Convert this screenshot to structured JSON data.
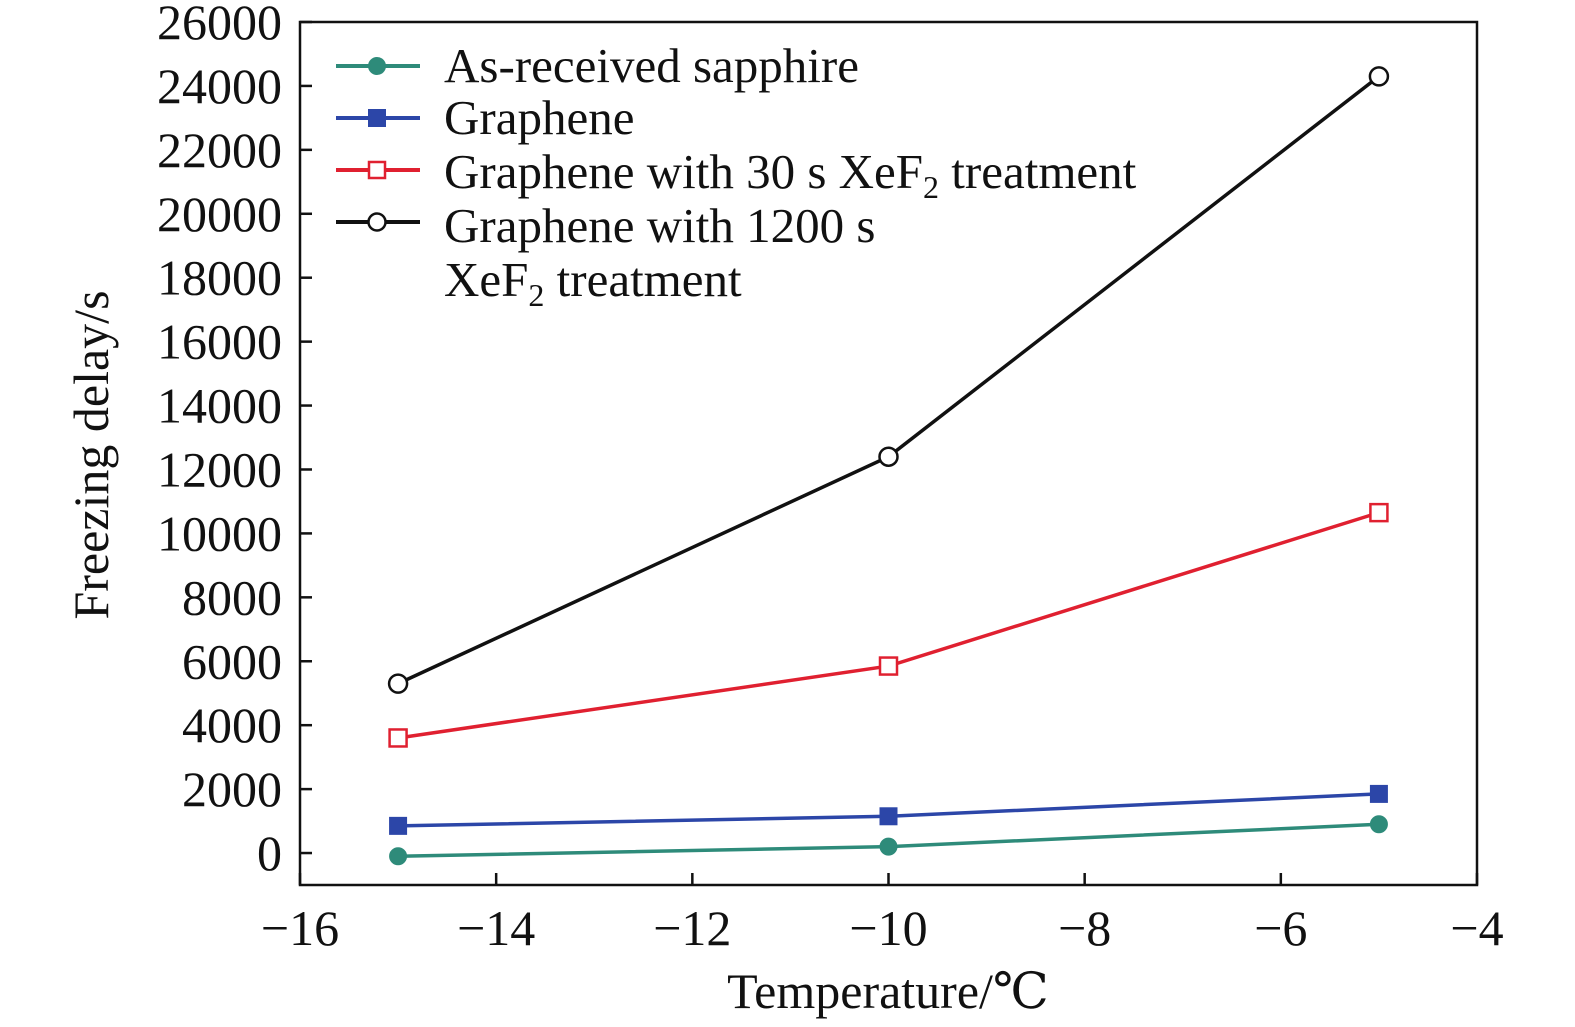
{
  "chart_data": {
    "type": "line",
    "xlabel": "Temperature/℃",
    "ylabel": "Freezing delay/s",
    "xlim": [
      -16,
      -4
    ],
    "ylim": [
      -1000,
      26000
    ],
    "xticks": [
      -16,
      -14,
      -12,
      -10,
      -8,
      -6,
      -4
    ],
    "yticks": [
      0,
      2000,
      4000,
      6000,
      8000,
      10000,
      12000,
      14000,
      16000,
      18000,
      20000,
      22000,
      24000,
      26000
    ],
    "x_tick_labels": [
      "−16",
      "−14",
      "−12",
      "−10",
      "−8",
      "−6",
      "−4"
    ],
    "y_tick_labels": [
      "0",
      "2000",
      "4000",
      "6000",
      "8000",
      "10000",
      "12000",
      "14000",
      "16000",
      "18000",
      "20000",
      "22000",
      "24000",
      "26000"
    ],
    "x": [
      -15,
      -10,
      -5
    ],
    "legend_position": "top-left",
    "grid": false,
    "series": [
      {
        "name": "As-received sapphire",
        "color": "#2e8b7a",
        "marker": "circle-filled",
        "values": [
          -100,
          200,
          900
        ]
      },
      {
        "name": "Graphene",
        "color": "#2c46a8",
        "marker": "square-filled",
        "values": [
          850,
          1150,
          1850
        ]
      },
      {
        "name": "Graphene with 30 s XeF2 treatment",
        "label_parts": [
          "Graphene with 30 s XeF",
          "2",
          " treatment"
        ],
        "color": "#e02030",
        "marker": "square-open",
        "values": [
          3600,
          5850,
          10650
        ]
      },
      {
        "name": "Graphene with 1200 s XeF2 treatment",
        "label_lines": [
          "Graphene with 1200 s",
          "XeF"
        ],
        "label_line2_parts": [
          "XeF",
          "2",
          " treatment"
        ],
        "color": "#111111",
        "marker": "circle-open",
        "values": [
          5300,
          12400,
          24300
        ]
      }
    ]
  }
}
